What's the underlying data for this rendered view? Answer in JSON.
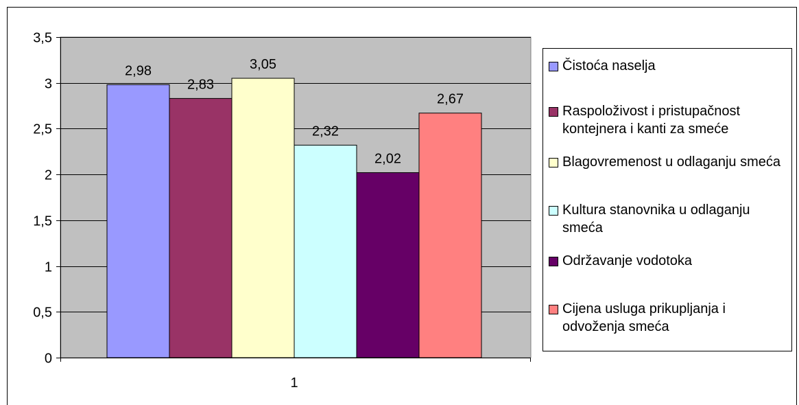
{
  "chart_data": {
    "type": "bar",
    "categories": [
      "1"
    ],
    "series": [
      {
        "name": "Čistoća naselja",
        "values": [
          2.98
        ],
        "label": "2,98",
        "color": "#9999ff"
      },
      {
        "name": "Raspoloživost i pristupačnost kontejnera i kanti za smeće",
        "values": [
          2.83
        ],
        "label": "2,83",
        "color": "#993366"
      },
      {
        "name": "Blagovremenost u odlaganju smeća",
        "values": [
          3.05
        ],
        "label": "3,05",
        "color": "#ffffcc"
      },
      {
        "name": "Kultura stanovnika u odlaganju smeća",
        "values": [
          2.32
        ],
        "label": "2,32",
        "color": "#ccffff"
      },
      {
        "name": "Održavanje vodotoka",
        "values": [
          2.02
        ],
        "label": "2,02",
        "color": "#660066"
      },
      {
        "name": "Cijena usluga prikupljanja i odvoženja smeća",
        "values": [
          2.67
        ],
        "label": "2,67",
        "color": "#ff8080"
      }
    ],
    "ylim": [
      0,
      3.5
    ],
    "yticks": [
      0,
      0.5,
      1,
      1.5,
      2,
      2.5,
      3,
      3.5
    ],
    "ytick_labels": [
      "0",
      "0,5",
      "1",
      "1,5",
      "2",
      "2,5",
      "3",
      "3,5"
    ],
    "xtick_labels": [
      "1"
    ],
    "grid": true,
    "plot_background": "#c0c0c0",
    "legend_position": "right"
  }
}
